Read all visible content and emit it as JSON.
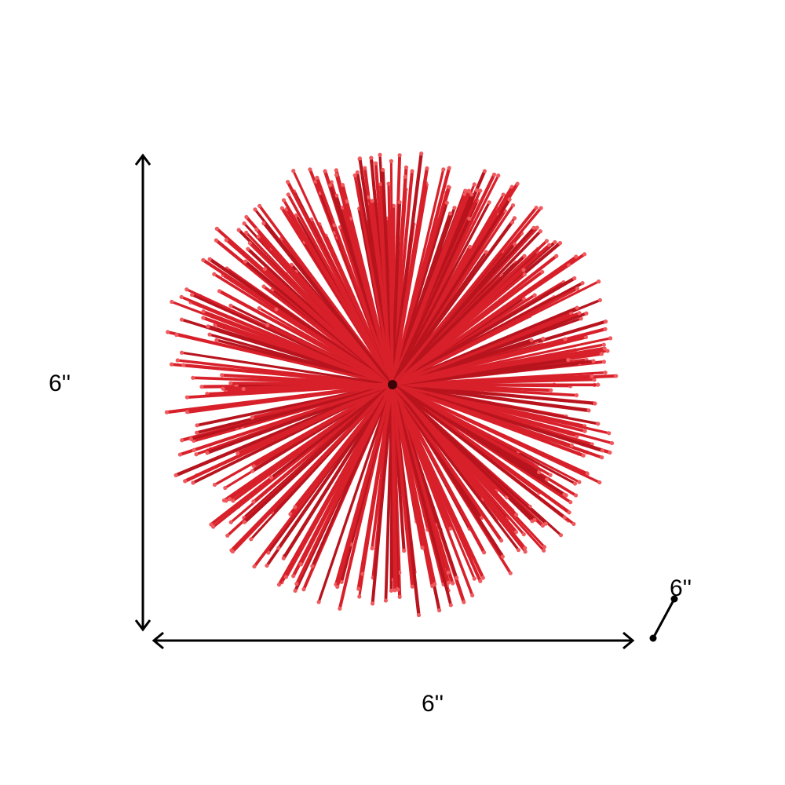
{
  "dimensions": {
    "height_label": "6''",
    "width_label": "6''",
    "depth_label": "6''"
  },
  "product": {
    "color": "#d8202a",
    "tip_color": "#ef5a5e"
  }
}
